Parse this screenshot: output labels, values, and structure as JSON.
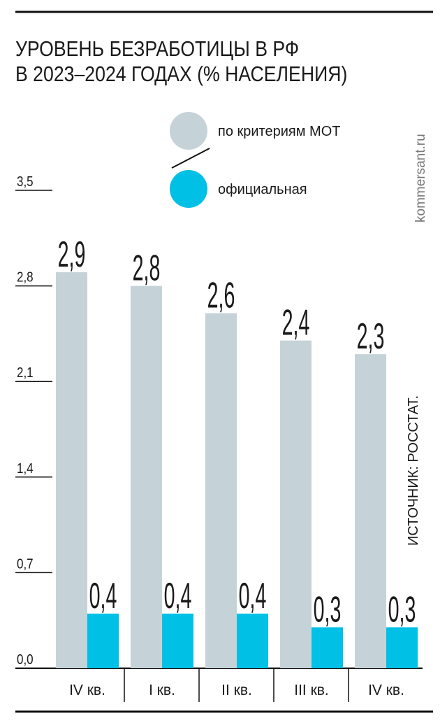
{
  "chart_data": {
    "type": "bar",
    "title": [
      "УРОВЕНЬ БЕЗРАБОТИЦЫ В РФ",
      "В 2023–2024 ГОДАХ (% НАСЕЛЕНИЯ)"
    ],
    "categories": [
      "IV кв.",
      "I кв.",
      "II кв.",
      "III кв.",
      "IV кв."
    ],
    "series": [
      {
        "name": "по критериям МОТ",
        "color": "#c5d3d8",
        "values": [
          2.9,
          2.8,
          2.6,
          2.4,
          2.3
        ],
        "value_labels": [
          "2,9",
          "2,8",
          "2,6",
          "2,4",
          "2,3"
        ]
      },
      {
        "name": "официальная",
        "color": "#00c0e6",
        "values": [
          0.4,
          0.4,
          0.4,
          0.3,
          0.3
        ],
        "value_labels": [
          "0,4",
          "0,4",
          "0,4",
          "0,3",
          "0,3"
        ]
      }
    ],
    "ylim": [
      0,
      3.5
    ],
    "yticks": [
      {
        "value": 0,
        "label": "0,0"
      },
      {
        "value": 0.7,
        "label": "0,7"
      },
      {
        "value": 1.4,
        "label": "1,4"
      },
      {
        "value": 2.1,
        "label": "2,1"
      },
      {
        "value": 2.8,
        "label": "2,8"
      },
      {
        "value": 3.5,
        "label": "3,5"
      }
    ],
    "source": "ИСТОЧНИК: РОССТАТ.",
    "credit": "kommersant.ru"
  }
}
